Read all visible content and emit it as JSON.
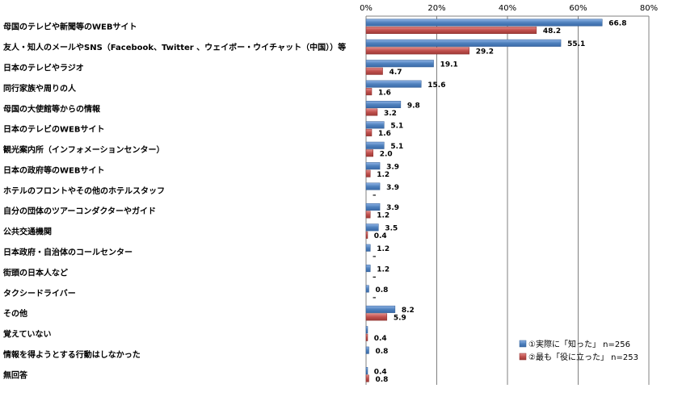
{
  "chart_data": {
    "type": "bar",
    "orientation": "horizontal",
    "xlim": [
      0,
      80
    ],
    "ticks": [
      "0%",
      "20%",
      "40%",
      "60%",
      "80%"
    ],
    "tick_values": [
      0,
      20,
      40,
      60,
      80
    ],
    "categories": [
      "母国のテレビや新聞等のWEBサイト",
      "友人・知人のメールやSNS（Facebook、Twitter 、ウェイボー・ウイチャット（中国））等",
      "日本のテレビやラジオ",
      "同行家族や周りの人",
      "母国の大使館等からの情報",
      "日本のテレビのWEBサイト",
      "観光案内所（インフォメーションセンター）",
      "日本の政府等のWEBサイト",
      "ホテルのフロントやその他のホテルスタッフ",
      "自分の団体のツアーコンダクターやガイド",
      "公共交通機関",
      "日本政府・自治体のコールセンター",
      "街頭の日本人など",
      "タクシードライバー",
      "その他",
      "覚えていない",
      "情報を得ようとする行動はしなかった",
      "無回答"
    ],
    "series": [
      {
        "name": "①実際に「知った」 n=256",
        "color": "#4a7ebb",
        "values": [
          66.8,
          55.1,
          19.1,
          15.6,
          9.8,
          5.1,
          5.1,
          3.9,
          3.9,
          3.9,
          3.5,
          1.2,
          1.2,
          0.8,
          8.2,
          0.4,
          0.8,
          0.4
        ],
        "labels": [
          "66.8",
          "55.1",
          "19.1",
          "15.6",
          "9.8",
          "5.1",
          "5.1",
          "3.9",
          "3.9",
          "3.9",
          "3.5",
          "1.2",
          "1.2",
          "0.8",
          "8.2",
          "",
          "0.8",
          "0.4"
        ]
      },
      {
        "name": "②最も「役に立った」 n=253",
        "color": "#c0504d",
        "values": [
          48.2,
          29.2,
          4.7,
          1.6,
          3.2,
          1.6,
          2.0,
          1.2,
          0,
          1.2,
          0.4,
          0,
          0,
          0,
          5.9,
          0.4,
          0,
          0.8
        ],
        "labels": [
          "48.2",
          "29.2",
          "4.7",
          "1.6",
          "3.2",
          "1.6",
          "2.0",
          "1.2",
          "–",
          "1.2",
          "0.4",
          "–",
          "–",
          "–",
          "5.9",
          "0.4",
          "",
          "0.8"
        ]
      }
    ],
    "legend_position": "bottom-right",
    "grid": true
  }
}
